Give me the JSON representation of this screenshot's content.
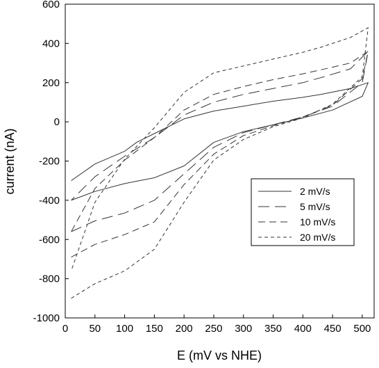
{
  "chart_data": {
    "type": "line",
    "xlabel": "E (mV vs NHE)",
    "ylabel": "current (nA)",
    "xlim": [
      0,
      520
    ],
    "ylim": [
      -1000,
      600
    ],
    "xticks": [
      0,
      50,
      100,
      150,
      200,
      250,
      300,
      350,
      400,
      450,
      500
    ],
    "yticks": [
      -1000,
      -800,
      -600,
      -400,
      -200,
      0,
      200,
      400,
      600
    ],
    "grid": false,
    "legend_position": "lower-right",
    "series": [
      {
        "name": "2 mV/s",
        "dash": "solid",
        "x": [
          10,
          50,
          100,
          150,
          200,
          250,
          300,
          350,
          400,
          450,
          500,
          510,
          480,
          430,
          400,
          350,
          300,
          250,
          200,
          150,
          120,
          100,
          50,
          10
        ],
        "y": [
          -400,
          -355,
          -315,
          -285,
          -225,
          -105,
          -50,
          -15,
          20,
          60,
          130,
          200,
          170,
          140,
          125,
          105,
          80,
          55,
          15,
          -60,
          -105,
          -150,
          -215,
          -300
        ]
      },
      {
        "name": "5 mV/s",
        "dash": "long",
        "x": [
          10,
          50,
          100,
          150,
          200,
          250,
          300,
          350,
          400,
          450,
          500,
          510,
          480,
          430,
          400,
          350,
          300,
          250,
          200,
          150,
          100,
          50,
          10
        ],
        "y": [
          -560,
          -505,
          -465,
          -400,
          -265,
          -130,
          -55,
          -15,
          25,
          80,
          200,
          360,
          270,
          225,
          200,
          170,
          140,
          100,
          35,
          -80,
          -175,
          -280,
          -400
        ]
      },
      {
        "name": "10 mV/s",
        "dash": "medium",
        "x": [
          10,
          50,
          100,
          150,
          200,
          250,
          300,
          350,
          400,
          450,
          500,
          510,
          480,
          430,
          400,
          350,
          300,
          250,
          200,
          150,
          100,
          50,
          10
        ],
        "y": [
          -690,
          -625,
          -575,
          -510,
          -320,
          -165,
          -70,
          -20,
          25,
          85,
          220,
          360,
          300,
          265,
          245,
          215,
          180,
          140,
          60,
          -80,
          -195,
          -340,
          -560
        ]
      },
      {
        "name": "20 mV/s",
        "dash": "short",
        "x": [
          10,
          50,
          100,
          150,
          200,
          250,
          300,
          350,
          400,
          450,
          500,
          510,
          480,
          430,
          400,
          350,
          300,
          250,
          200,
          150,
          100,
          50,
          10
        ],
        "y": [
          -900,
          -825,
          -760,
          -650,
          -410,
          -195,
          -90,
          -25,
          20,
          90,
          230,
          480,
          430,
          380,
          355,
          320,
          285,
          250,
          150,
          -30,
          -190,
          -410,
          -760
        ]
      }
    ]
  }
}
